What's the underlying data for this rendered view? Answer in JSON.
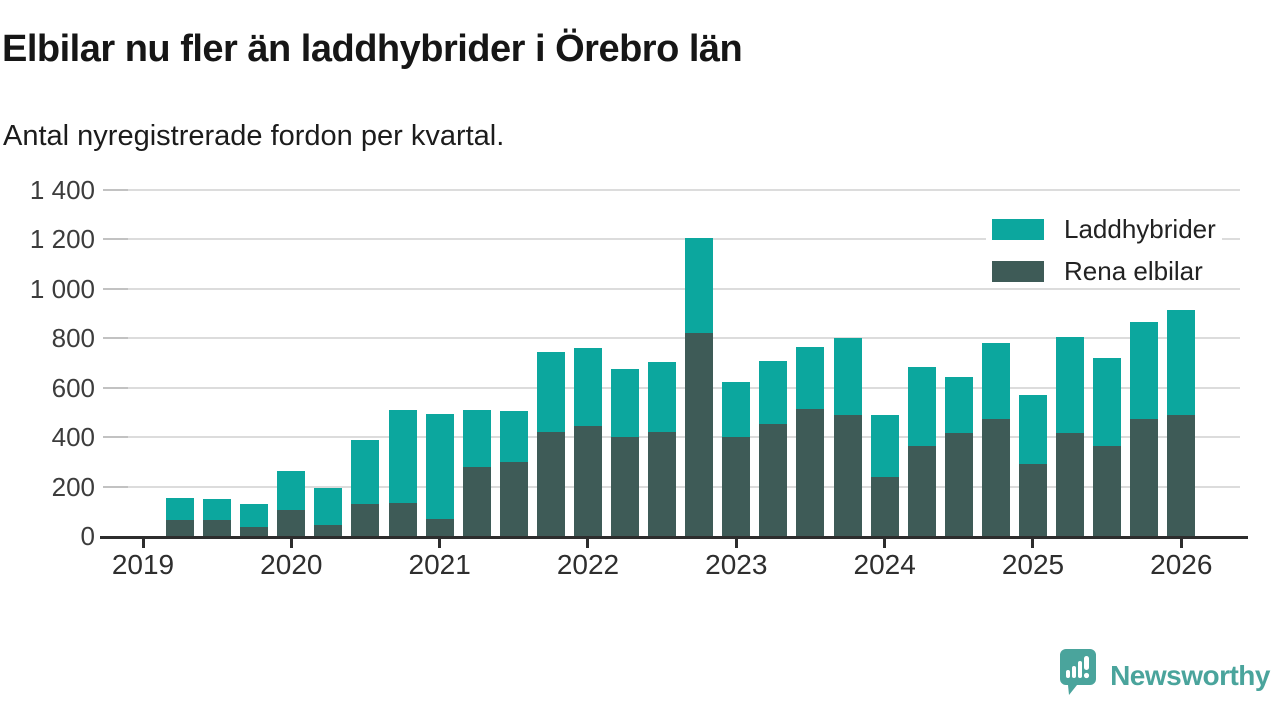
{
  "header": {
    "title": "Elbilar nu fler än laddhybrider i Örebro län",
    "subtitle": "Antal nyregistrerade fordon per kvartal."
  },
  "chart_data": {
    "type": "bar",
    "stacked": true,
    "title": "Elbilar nu fler än laddhybrider i Örebro län",
    "subtitle": "Antal nyregistrerade fordon per kvartal.",
    "x": [
      "2019Q2",
      "2019Q3",
      "2019Q4",
      "2020Q1",
      "2020Q2",
      "2020Q3",
      "2020Q4",
      "2021Q1",
      "2021Q2",
      "2021Q3",
      "2021Q4",
      "2022Q1",
      "2022Q2",
      "2022Q3",
      "2022Q4",
      "2023Q1",
      "2023Q2",
      "2023Q3",
      "2023Q4",
      "2024Q1",
      "2024Q2",
      "2024Q3",
      "2024Q4",
      "2025Q1",
      "2025Q2",
      "2025Q3",
      "2025Q4",
      "2026Q1"
    ],
    "series": [
      {
        "name": "Rena elbilar",
        "color": "#3E5B57",
        "values": [
          65,
          65,
          35,
          105,
          45,
          130,
          135,
          70,
          280,
          300,
          420,
          445,
          400,
          420,
          820,
          400,
          455,
          515,
          490,
          240,
          365,
          415,
          475,
          290,
          415,
          365,
          475,
          490
        ]
      },
      {
        "name": "Laddhybrider",
        "color": "#0CA79E",
        "values": [
          90,
          85,
          95,
          160,
          150,
          260,
          375,
          425,
          230,
          205,
          325,
          315,
          275,
          285,
          385,
          225,
          255,
          250,
          310,
          250,
          320,
          230,
          305,
          280,
          390,
          355,
          390,
          425
        ]
      }
    ],
    "ylim": [
      0,
      1400
    ],
    "y_ticks": [
      {
        "value": 0,
        "label": "0"
      },
      {
        "value": 200,
        "label": "200"
      },
      {
        "value": 400,
        "label": "400"
      },
      {
        "value": 600,
        "label": "600"
      },
      {
        "value": 800,
        "label": "800"
      },
      {
        "value": 1000,
        "label": "1 000"
      },
      {
        "value": 1200,
        "label": "1 200"
      },
      {
        "value": 1400,
        "label": "1 400"
      }
    ],
    "x_ticks": [
      {
        "quarter": "2019Q1",
        "label": "2019"
      },
      {
        "quarter": "2020Q1",
        "label": "2020"
      },
      {
        "quarter": "2021Q1",
        "label": "2021"
      },
      {
        "quarter": "2022Q1",
        "label": "2022"
      },
      {
        "quarter": "2023Q1",
        "label": "2023"
      },
      {
        "quarter": "2024Q1",
        "label": "2024"
      },
      {
        "quarter": "2025Q1",
        "label": "2025"
      },
      {
        "quarter": "2026Q1",
        "label": "2026"
      }
    ],
    "grid": "horizontal",
    "legend_position": "top-right"
  },
  "legend": {
    "items": [
      {
        "label": "Laddhybrider",
        "color": "#0CA79E"
      },
      {
        "label": "Rena elbilar",
        "color": "#3E5B57"
      }
    ]
  },
  "footer": {
    "brand": "Newsworthy",
    "brand_color": "#4AA49C"
  }
}
